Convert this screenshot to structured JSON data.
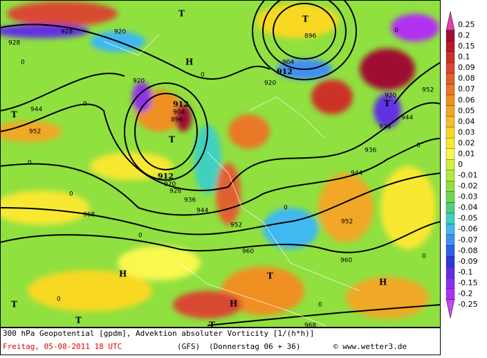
{
  "map": {
    "labels": [
      "928",
      "920",
      "912",
      "904",
      "896",
      "912",
      "920",
      "928",
      "936",
      "944",
      "952",
      "960",
      "968",
      "960",
      "952",
      "944",
      "936",
      "920",
      "928",
      "944",
      "952",
      "968",
      "904",
      "896",
      "920",
      "912",
      "928",
      "920",
      "944",
      "952",
      "T",
      "T",
      "H",
      "T",
      "T",
      "T",
      "H",
      "T",
      "H",
      "T",
      "T",
      "H",
      "T",
      "0",
      "0",
      "0",
      "0",
      "0",
      "0",
      "0",
      "0",
      "0",
      "0",
      "0",
      "0"
    ]
  },
  "colorbar": [
    {
      "label": "0.25",
      "color": "#e040b0"
    },
    {
      "label": "0.2",
      "color": "#a01030"
    },
    {
      "label": "0.15",
      "color": "#b81a28"
    },
    {
      "label": "0.1",
      "color": "#cc3028"
    },
    {
      "label": "0.09",
      "color": "#d84830"
    },
    {
      "label": "0.08",
      "color": "#e06030"
    },
    {
      "label": "0.07",
      "color": "#e87828"
    },
    {
      "label": "0.06",
      "color": "#f09020"
    },
    {
      "label": "0.05",
      "color": "#f0a828"
    },
    {
      "label": "0.04",
      "color": "#f4c028"
    },
    {
      "label": "0.03",
      "color": "#f8d820"
    },
    {
      "label": "0.02",
      "color": "#f8e830"
    },
    {
      "label": "0.01",
      "color": "#f8f850"
    },
    {
      "label": "0",
      "color": "#d0f040"
    },
    {
      "label": "-0.01",
      "color": "#b0ec40"
    },
    {
      "label": "-0.02",
      "color": "#90e040"
    },
    {
      "label": "-0.03",
      "color": "#70d850"
    },
    {
      "label": "-0.04",
      "color": "#50d080"
    },
    {
      "label": "-0.05",
      "color": "#40d0c0"
    },
    {
      "label": "-0.06",
      "color": "#40b8f0"
    },
    {
      "label": "-0.07",
      "color": "#4090f0"
    },
    {
      "label": "-0.08",
      "color": "#3060e8"
    },
    {
      "label": "-0.09",
      "color": "#3038d8"
    },
    {
      "label": "-0.1",
      "color": "#6030e0"
    },
    {
      "label": "-0.15",
      "color": "#9030e8"
    },
    {
      "label": "-0.2",
      "color": "#b030f0"
    },
    {
      "label": "-0.25",
      "color": "#c848f0"
    }
  ],
  "footer": {
    "line1": "300 hPa Geopotential [gpdm], Advektion absoluter Vorticity [1/(h*h)]",
    "date": "Freitag, 05-08-2011  18 UTC",
    "model": "(GFS)",
    "run": "(Donnerstag 06 + 36)",
    "credit": "© www.wetter3.de"
  }
}
